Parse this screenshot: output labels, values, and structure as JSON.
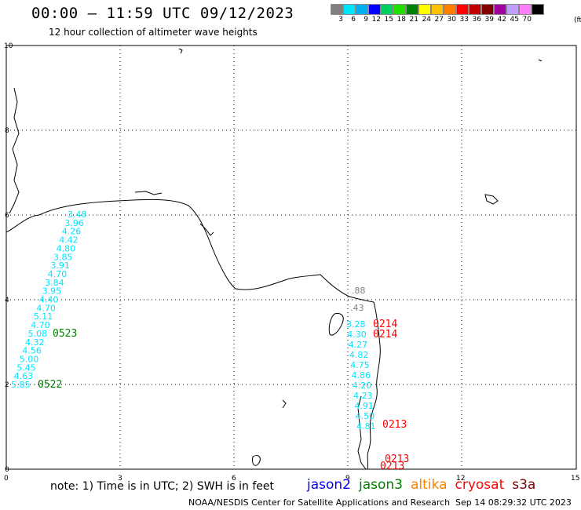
{
  "title": "00:00 – 11:59 UTC 09/12/2023",
  "subtitle": "12 hour collection of altimeter wave heights",
  "legend": {
    "colors": [
      "#808080",
      "#00e5ff",
      "#00b0f0",
      "#0000ff",
      "#00d060",
      "#20e000",
      "#008000",
      "#ffff00",
      "#ffc000",
      "#ff8000",
      "#ff0000",
      "#c00000",
      "#800000",
      "#a000a0",
      "#c0a0ff",
      "#ff80ff",
      "#000000"
    ],
    "labels": [
      "3",
      "6",
      "9",
      "12",
      "15",
      "18",
      "21",
      "24",
      "27",
      "30",
      "33",
      "36",
      "39",
      "42",
      "45",
      "70"
    ],
    "unit": "(ft)"
  },
  "axes": {
    "x_ticks": [
      "0",
      "3",
      "6",
      "9",
      "12",
      "15"
    ],
    "y_ticks": [
      "0",
      "2",
      "4",
      "6",
      "8",
      "10"
    ]
  },
  "track_labels": {
    "jason3_west": [
      "3.48",
      "3.96",
      "4.26",
      "4.42",
      "4.80",
      "3.85",
      "3.91",
      "4.70",
      "3.84",
      "3.95",
      "4.40",
      "4.70",
      "5.11",
      "4.70",
      "5.08",
      "4.32",
      "4.56",
      "5.00",
      "5.45",
      "4.63",
      "5.85"
    ],
    "jason3_east": [
      "3.28",
      "4.30",
      "4.27",
      "4.82",
      "4.75",
      "4.86",
      "4.20",
      "4.23",
      "4.91",
      "4.50",
      "4.81"
    ],
    "gray": [
      ".88",
      ".43"
    ]
  },
  "time_labels": {
    "green1": "0523",
    "green2": "0522",
    "red1": "0214",
    "red2": "0214",
    "red3": "0213",
    "red4": "0213",
    "red5": "0213"
  },
  "note": "note: 1) Time is in UTC; 2) SWH is in feet",
  "satellites": [
    {
      "name": "jason2",
      "color": "#0000ff"
    },
    {
      "name": "jason3",
      "color": "#008000"
    },
    {
      "name": "altika",
      "color": "#ff8000"
    },
    {
      "name": "cryosat",
      "color": "#ff0000"
    },
    {
      "name": "s3a",
      "color": "#800000"
    }
  ],
  "credit": "NOAA/NESDIS Center for Satellite Applications and Research",
  "timestamp": "Sep 14 08:29:32 UTC 2023"
}
